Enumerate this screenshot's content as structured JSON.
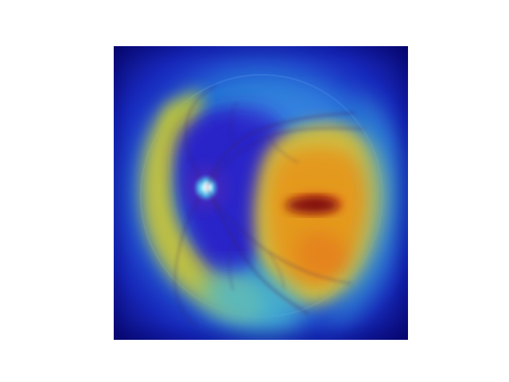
{
  "figure": {
    "image_kind": "fundus-attention-heatmap",
    "colormap": "jet",
    "colors": {
      "background": "#ffffff",
      "low": "#08086f",
      "mid_low": "#1f3bd6",
      "mid": "#36b9c9",
      "mid_high": "#c6c23f",
      "high": "#e2731c",
      "peak": "#8f0f12",
      "optic_disc": "#e9ffff",
      "vessel": "#3a2166"
    }
  }
}
